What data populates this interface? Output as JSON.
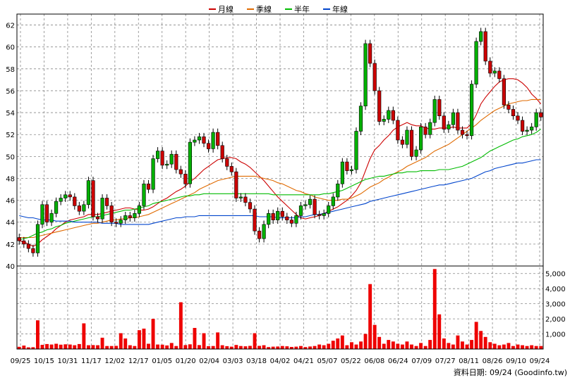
{
  "chart_data": {
    "type": "candlestick",
    "legend": {
      "placement": "top-center",
      "items": [
        {
          "label": "月線",
          "color": "#cc0000"
        },
        {
          "label": "季線",
          "color": "#e06a00"
        },
        {
          "label": "半年",
          "color": "#00bb00"
        },
        {
          "label": "年線",
          "color": "#0044cc"
        }
      ]
    },
    "price_axis": {
      "min": 40,
      "max": 63,
      "ticks": [
        40,
        42,
        44,
        46,
        48,
        50,
        52,
        54,
        56,
        58,
        60,
        62
      ],
      "tick_labels": [
        "40",
        "42",
        "44",
        "46",
        "48",
        "50",
        "52",
        "54",
        "56",
        "58",
        "60",
        "62"
      ],
      "side": "left"
    },
    "volume_axis": {
      "min": 0,
      "max": 5500,
      "ticks": [
        1000,
        2000,
        3000,
        4000,
        5000
      ],
      "tick_labels": [
        "1,000",
        "2,000",
        "3,000",
        "4,000",
        "5,000"
      ],
      "side": "right"
    },
    "x_labels": [
      "09/25",
      "10/15",
      "10/31",
      "11/17",
      "12/02",
      "12/17",
      "01/05",
      "01/20",
      "02/04",
      "03/03",
      "03/18",
      "04/02",
      "04/21",
      "05/07",
      "05/22",
      "06/08",
      "06/24",
      "07/09",
      "07/27",
      "08/11",
      "08/26",
      "09/10",
      "09/24"
    ],
    "grid": true,
    "candle_up_color": "#00b000",
    "candle_down_color": "#cc0000",
    "volume_color": "#ee0000",
    "closes": [
      42.3,
      42.0,
      41.6,
      41.2,
      43.8,
      45.6,
      44.0,
      44.8,
      45.9,
      46.2,
      46.5,
      46.3,
      45.5,
      45.0,
      45.6,
      47.8,
      44.5,
      44.3,
      46.2,
      45.5,
      44.0,
      43.9,
      44.2,
      44.6,
      44.4,
      44.8,
      45.5,
      47.5,
      47.0,
      49.8,
      50.5,
      49.2,
      49.3,
      50.2,
      48.8,
      48.4,
      47.5,
      51.3,
      51.5,
      51.8,
      51.2,
      50.7,
      52.2,
      51.0,
      49.8,
      49.1,
      48.6,
      46.2,
      46.3,
      45.8,
      45.2,
      43.2,
      42.5,
      43.8,
      44.8,
      44.2,
      45.0,
      44.5,
      44.2,
      43.9,
      44.6,
      45.5,
      45.6,
      46.1,
      44.7,
      44.6,
      44.8,
      45.5,
      46.3,
      47.5,
      49.5,
      48.7,
      48.8,
      52.3,
      54.6,
      60.3,
      58.5,
      56.0,
      53.2,
      53.4,
      54.2,
      53.3,
      51.5,
      51.1,
      52.4,
      50.0,
      50.6,
      52.7,
      52.0,
      53.1,
      55.2,
      53.7,
      52.5,
      52.9,
      54.0,
      52.4,
      52.0,
      51.9,
      56.6,
      60.5,
      61.4,
      58.7,
      57.6,
      57.8,
      57.1,
      54.7,
      54.3,
      53.7,
      53.3,
      52.3,
      52.4,
      52.7,
      54.0,
      53.6
    ],
    "ma": [
      {
        "label": "月線",
        "values": [
          42.3,
          42.2,
          42.0,
          41.8,
          42.0,
          42.4,
          42.7,
          43.0,
          43.4,
          43.7,
          44.0,
          44.2,
          44.3,
          44.4,
          44.5,
          44.7,
          44.7,
          44.7,
          44.8,
          44.9,
          45.0,
          45.1,
          45.2,
          45.3,
          45.3,
          45.2,
          45.1,
          45.1,
          45.2,
          45.4,
          45.7,
          46.0,
          46.2,
          46.5,
          46.8,
          47.0,
          47.3,
          47.7,
          48.0,
          48.4,
          48.8,
          49.1,
          49.4,
          49.7,
          49.8,
          49.9,
          49.9,
          49.8,
          49.5,
          49.3,
          49.0,
          48.6,
          48.2,
          47.8,
          47.3,
          46.8,
          46.3,
          45.9,
          45.5,
          45.1,
          44.7,
          44.4,
          44.3,
          44.4,
          44.5,
          44.6,
          44.8,
          45.0,
          45.2,
          45.4,
          45.7,
          46.0,
          46.4,
          46.9,
          47.6,
          48.7,
          49.8,
          50.6,
          51.0,
          51.5,
          51.9,
          52.4,
          52.7,
          52.9,
          53.1,
          52.9,
          52.8,
          52.8,
          52.6,
          52.5,
          52.5,
          52.6,
          52.6,
          52.6,
          52.7,
          52.6,
          52.6,
          52.6,
          53.0,
          53.8,
          54.8,
          55.4,
          55.9,
          56.4,
          56.8,
          57.0,
          57.1,
          57.1,
          57.0,
          56.7,
          56.3,
          55.7,
          55.3,
          54.8
        ]
      },
      {
        "label": "季線",
        "values": [
          42.6,
          42.6,
          42.6,
          42.6,
          42.7,
          42.8,
          42.9,
          43.0,
          43.1,
          43.2,
          43.3,
          43.4,
          43.5,
          43.6,
          43.7,
          43.8,
          43.9,
          43.9,
          44.0,
          44.1,
          44.2,
          44.2,
          44.3,
          44.3,
          44.4,
          44.4,
          44.5,
          44.6,
          44.7,
          44.9,
          45.1,
          45.3,
          45.5,
          45.7,
          45.9,
          46.1,
          46.3,
          46.5,
          46.7,
          47.0,
          47.2,
          47.4,
          47.6,
          47.8,
          47.9,
          48.0,
          48.1,
          48.2,
          48.2,
          48.2,
          48.2,
          48.2,
          48.1,
          48.0,
          47.9,
          47.8,
          47.6,
          47.5,
          47.3,
          47.1,
          46.9,
          46.8,
          46.6,
          46.5,
          46.3,
          46.2,
          46.1,
          46.0,
          46.0,
          46.0,
          46.1,
          46.1,
          46.2,
          46.4,
          46.6,
          46.9,
          47.2,
          47.4,
          47.6,
          47.9,
          48.1,
          48.4,
          48.6,
          48.8,
          49.1,
          49.3,
          49.5,
          49.7,
          49.9,
          50.2,
          50.5,
          50.7,
          50.9,
          51.1,
          51.4,
          51.7,
          52.0,
          52.3,
          52.6,
          52.9,
          53.3,
          53.6,
          53.9,
          54.2,
          54.4,
          54.6,
          54.8,
          54.9,
          55.0,
          55.1,
          55.1,
          55.2,
          55.2,
          55.2
        ]
      },
      {
        "label": "半年",
        "values": [
          42.4,
          42.5,
          42.6,
          42.8,
          43.0,
          43.1,
          43.3,
          43.4,
          43.6,
          43.7,
          43.9,
          44.0,
          44.1,
          44.2,
          44.3,
          44.4,
          44.5,
          44.5,
          44.6,
          44.7,
          44.8,
          44.9,
          45.0,
          45.1,
          45.1,
          45.2,
          45.3,
          45.4,
          45.5,
          45.7,
          45.8,
          45.9,
          46.0,
          46.1,
          46.2,
          46.3,
          46.4,
          46.4,
          46.5,
          46.5,
          46.6,
          46.6,
          46.6,
          46.6,
          46.6,
          46.6,
          46.6,
          46.6,
          46.6,
          46.6,
          46.6,
          46.6,
          46.6,
          46.6,
          46.6,
          46.5,
          46.5,
          46.5,
          46.5,
          46.5,
          46.5,
          46.5,
          46.5,
          46.5,
          46.5,
          46.5,
          46.6,
          46.6,
          46.7,
          46.8,
          46.9,
          47.1,
          47.3,
          47.5,
          47.7,
          47.9,
          48.0,
          48.1,
          48.2,
          48.2,
          48.3,
          48.4,
          48.5,
          48.5,
          48.6,
          48.6,
          48.6,
          48.7,
          48.7,
          48.7,
          48.7,
          48.8,
          48.8,
          48.8,
          48.9,
          49.0,
          49.1,
          49.3,
          49.5,
          49.7,
          49.9,
          50.2,
          50.5,
          50.7,
          50.9,
          51.1,
          51.3,
          51.5,
          51.6,
          51.8,
          51.9,
          52.0,
          52.2,
          52.5
        ]
      },
      {
        "label": "年線",
        "values": [
          44.6,
          44.5,
          44.4,
          44.4,
          44.3,
          44.2,
          44.2,
          44.2,
          44.1,
          44.1,
          44.1,
          44.1,
          44.0,
          44.0,
          44.0,
          44.0,
          44.0,
          44.0,
          43.9,
          43.9,
          43.9,
          43.9,
          43.8,
          43.8,
          43.8,
          43.8,
          43.8,
          43.8,
          43.8,
          43.9,
          44.0,
          44.1,
          44.2,
          44.3,
          44.4,
          44.4,
          44.5,
          44.5,
          44.5,
          44.6,
          44.6,
          44.6,
          44.6,
          44.6,
          44.6,
          44.6,
          44.6,
          44.6,
          44.6,
          44.6,
          44.6,
          44.6,
          44.5,
          44.5,
          44.5,
          44.5,
          44.4,
          44.4,
          44.4,
          44.4,
          44.4,
          44.5,
          44.5,
          44.6,
          44.7,
          44.7,
          44.8,
          44.9,
          45.0,
          45.1,
          45.2,
          45.3,
          45.4,
          45.5,
          45.6,
          45.7,
          45.9,
          46.0,
          46.1,
          46.2,
          46.3,
          46.4,
          46.5,
          46.6,
          46.7,
          46.8,
          46.9,
          47.0,
          47.1,
          47.2,
          47.3,
          47.4,
          47.4,
          47.5,
          47.6,
          47.7,
          47.8,
          47.9,
          48.0,
          48.2,
          48.4,
          48.6,
          48.7,
          48.9,
          49.0,
          49.1,
          49.2,
          49.3,
          49.4,
          49.4,
          49.5,
          49.6,
          49.7,
          49.7
        ]
      }
    ],
    "volumes": [
      150,
      230,
      110,
      120,
      1900,
      280,
      330,
      300,
      350,
      290,
      310,
      300,
      250,
      330,
      1700,
      250,
      260,
      250,
      750,
      200,
      200,
      210,
      1050,
      700,
      250,
      200,
      1250,
      1350,
      350,
      2000,
      300,
      290,
      240,
      400,
      200,
      3100,
      260,
      310,
      1400,
      260,
      1050,
      190,
      200,
      1100,
      250,
      190,
      160,
      270,
      200,
      180,
      210,
      1050,
      210,
      250,
      130,
      160,
      170,
      200,
      180,
      140,
      160,
      200,
      130,
      170,
      200,
      300,
      250,
      350,
      550,
      700,
      900,
      250,
      450,
      300,
      500,
      1000,
      4300,
      1600,
      800,
      350,
      600,
      500,
      350,
      300,
      500,
      300,
      200,
      400,
      200,
      600,
      5300,
      2300,
      700,
      400,
      300,
      900,
      500,
      300,
      600,
      1800,
      1200,
      800,
      450,
      350,
      250,
      300,
      400,
      200,
      300,
      250,
      200,
      250,
      200,
      200
    ],
    "footer": "資料日期: 09/24  (Goodinfo.tw)"
  }
}
